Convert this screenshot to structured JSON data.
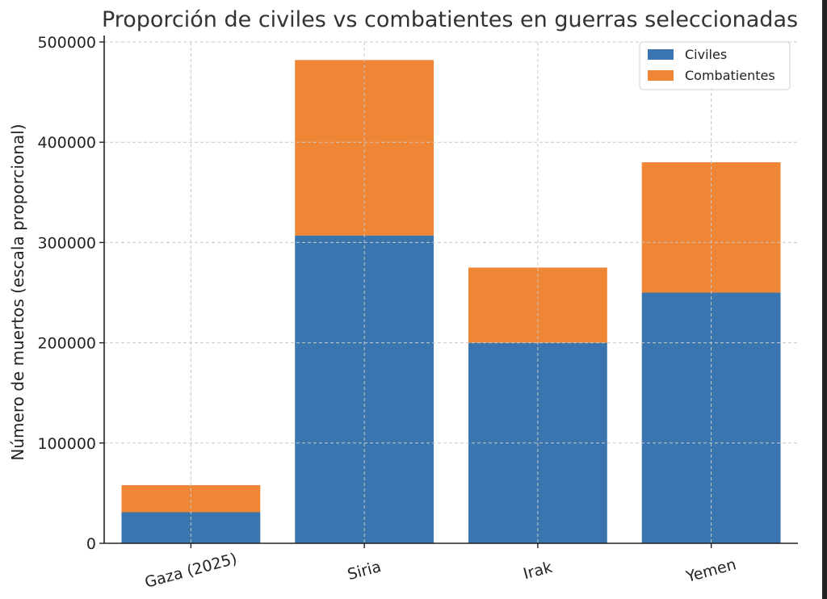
{
  "chart_data": {
    "type": "bar",
    "stacked": true,
    "title": "Proporción de civiles vs combatientes en guerras seleccionadas",
    "xlabel": "",
    "ylabel": "Número de muertos (escala proporcional)",
    "categories": [
      "Gaza (2025)",
      "Siria",
      "Irak",
      "Yemen"
    ],
    "series": [
      {
        "name": "Civiles",
        "color": "#3b75af",
        "values": [
          31000,
          307000,
          200000,
          250000
        ]
      },
      {
        "name": "Combatientes",
        "color": "#ef8636",
        "values": [
          27000,
          175000,
          75000,
          130000
        ]
      }
    ],
    "ylim": [
      0,
      500000
    ],
    "yticks": [
      "0",
      "100000",
      "200000",
      "300000",
      "400000",
      "500000"
    ],
    "grid": true,
    "legend_position": "top-right",
    "xtick_rotation_deg": -15
  }
}
